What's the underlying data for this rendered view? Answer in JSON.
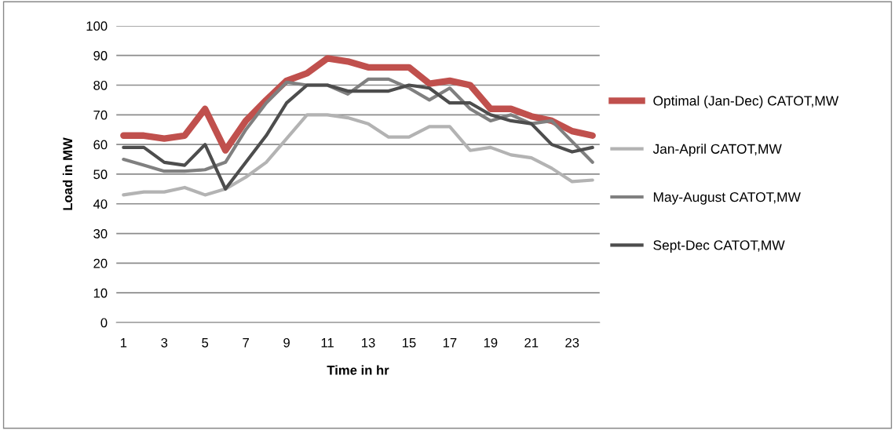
{
  "chart_data": {
    "type": "line",
    "xlabel": "Time in hr",
    "ylabel": "Load in MW",
    "categories": [
      "1",
      null,
      "3",
      null,
      "5",
      null,
      "7",
      null,
      "9",
      null,
      "11",
      null,
      "13",
      null,
      "15",
      null,
      "17",
      null,
      "19",
      null,
      "21",
      null,
      "23",
      null
    ],
    "series": [
      {
        "name": "Optimal (Jan-Dec) CATOT,MW",
        "color": "#c0504d",
        "values": [
          63,
          63,
          62,
          63,
          72,
          58,
          68,
          75,
          81.5,
          84,
          89,
          88,
          86,
          86,
          86,
          80.5,
          81.5,
          80,
          72,
          72,
          69.5,
          68,
          64.5,
          63
        ]
      },
      {
        "name": "Jan-April CATOT,MW",
        "color": "#b3b3b3",
        "values": [
          43,
          44,
          44,
          45.5,
          43,
          45,
          49,
          54,
          62,
          70,
          70,
          69,
          67,
          62.5,
          62.5,
          66,
          66,
          58,
          59,
          56.5,
          55.5,
          52,
          47.5,
          48
        ]
      },
      {
        "name": "May-August CATOT,MW",
        "color": "#808080",
        "values": [
          55,
          53,
          51,
          51,
          51.5,
          54,
          65,
          74,
          81,
          80,
          80,
          77,
          82,
          82,
          79,
          75,
          79,
          72,
          68,
          70,
          67,
          68,
          61,
          54
        ]
      },
      {
        "name": "Sept-Dec CATOT,MW",
        "color": "#4d4d4d",
        "values": [
          59,
          59,
          54,
          53,
          60,
          45,
          54,
          63,
          74,
          80,
          80,
          78,
          78,
          78,
          80,
          79,
          74,
          74,
          70,
          68,
          67,
          60,
          57.5,
          59
        ]
      }
    ],
    "ylim": [
      0,
      100
    ],
    "yticks": [
      0,
      10,
      20,
      30,
      40,
      50,
      60,
      70,
      80,
      90,
      100
    ],
    "grid": "y",
    "legend": "right",
    "marker": "none",
    "line_style": "solid"
  }
}
